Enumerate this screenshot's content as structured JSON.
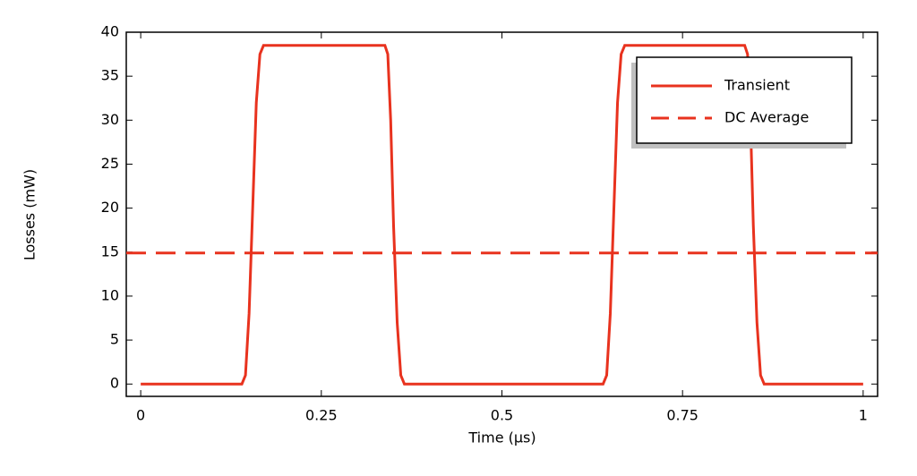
{
  "chart_data": {
    "type": "line",
    "x_label": "Time (µs)",
    "y_label": "Losses (mW)",
    "xlim": [
      -0.02,
      1.02
    ],
    "ylim": [
      -1.4,
      40
    ],
    "xticks": [
      0,
      0.25,
      0.5,
      0.75,
      1
    ],
    "yticks": [
      0,
      5,
      10,
      15,
      20,
      25,
      30,
      35,
      40
    ],
    "grid": false,
    "legend": "upper right",
    "series": [
      {
        "name": "Transient",
        "color": "#e8321e",
        "style": "solid",
        "x": [
          0,
          0.14,
          0.145,
          0.15,
          0.155,
          0.16,
          0.165,
          0.17,
          0.338,
          0.342,
          0.346,
          0.35,
          0.355,
          0.36,
          0.365,
          0.64,
          0.645,
          0.65,
          0.655,
          0.66,
          0.665,
          0.67,
          0.836,
          0.84,
          0.844,
          0.848,
          0.853,
          0.858,
          0.863,
          1
        ],
        "values": [
          0,
          0,
          1,
          8,
          20,
          32,
          37.5,
          38.5,
          38.5,
          37.5,
          30,
          18,
          7,
          1,
          0,
          0,
          1,
          8,
          20,
          32,
          37.5,
          38.5,
          38.5,
          37.5,
          30,
          18,
          7,
          1,
          0,
          0
        ]
      },
      {
        "name": "DC Average",
        "color": "#e8321e",
        "style": "dashed",
        "x": [
          -0.02,
          1.02
        ],
        "values": [
          14.9,
          14.9
        ]
      }
    ]
  }
}
